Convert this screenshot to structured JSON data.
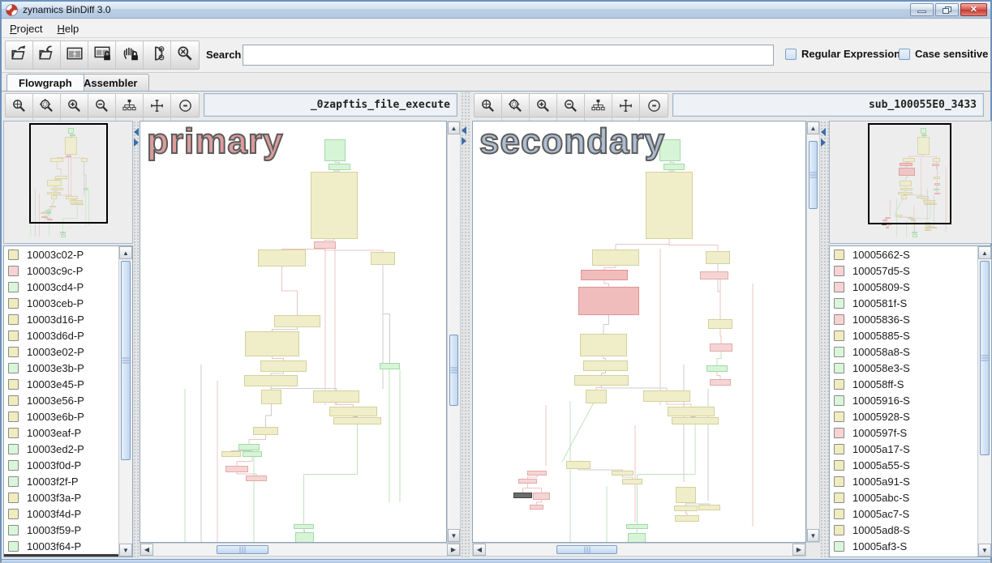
{
  "window": {
    "title": "zynamics BinDiff 3.0"
  },
  "menu": {
    "items": [
      {
        "label": "Project",
        "mnemonic": "P"
      },
      {
        "label": "Help",
        "mnemonic": "H"
      }
    ]
  },
  "toolbar": {
    "buttons": [
      "open-diff-icon",
      "import-diff-icon",
      "dual-window-icon",
      "window-lock-icon",
      "pan-lock-icon",
      "proximity-browsing-icon",
      "clear-search-icon"
    ],
    "search_label": "Search",
    "search_value": "",
    "checkboxes": [
      {
        "label": "Regular Expression",
        "checked": false
      },
      {
        "label": "Case sensitive",
        "checked": false
      }
    ]
  },
  "tabs": [
    {
      "label": "Flowgraph",
      "active": true
    },
    {
      "label": "Assembler",
      "active": false
    }
  ],
  "graph_toolbar_buttons": [
    "zoom-fit-icon",
    "zoom-selection-icon",
    "zoom-in-icon",
    "zoom-out-icon",
    "hierarchy-layout-icon",
    "fit-content-icon",
    "proximity-toggle-icon"
  ],
  "node_colors": {
    "y": {
      "bg": "#f0eec9",
      "bd": "#d4d09c"
    },
    "g": {
      "bg": "#d5f5d6",
      "bd": "#a5d8a8"
    },
    "p": {
      "bg": "#f6d4d4",
      "bd": "#e3aaaa"
    },
    "r": {
      "bg": "#f1bcbc",
      "bd": "#dd9494"
    },
    "d": {
      "bg": "#6b6b6b",
      "bd": "#454545"
    }
  },
  "edge_colors": {
    "gray": "#cccccc",
    "pink": "#ecc4c4",
    "green": "#bfe3bf"
  },
  "swatch_colors": {
    "y": "#f0ecbe",
    "g": "#d9f6da",
    "p": "#f8d3d3"
  },
  "primary_pane": {
    "title": "_0zapftis_file_execute",
    "watermark": "primary",
    "functions": [
      [
        "10003c02-P",
        "y"
      ],
      [
        "10003c9c-P",
        "p"
      ],
      [
        "10003cd4-P",
        "g"
      ],
      [
        "10003ceb-P",
        "y"
      ],
      [
        "10003d16-P",
        "y"
      ],
      [
        "10003d6d-P",
        "y"
      ],
      [
        "10003e02-P",
        "y"
      ],
      [
        "10003e3b-P",
        "g"
      ],
      [
        "10003e45-P",
        "y"
      ],
      [
        "10003e56-P",
        "y"
      ],
      [
        "10003e6b-P",
        "y"
      ],
      [
        "10003eaf-P",
        "y"
      ],
      [
        "10003ed2-P",
        "g"
      ],
      [
        "10003f0d-P",
        "g"
      ],
      [
        "10003f2f-P",
        "g"
      ],
      [
        "10003f3a-P",
        "y"
      ],
      [
        "10003f4d-P",
        "y"
      ],
      [
        "10003f59-P",
        "g"
      ],
      [
        "10003f64-P",
        "g"
      ],
      [
        "",
        "sel"
      ]
    ],
    "graph": {
      "nodes": [
        [
          227,
          22,
          26,
          27,
          "g"
        ],
        [
          232,
          52,
          27,
          8,
          "g"
        ],
        [
          210,
          62,
          58,
          83,
          "y"
        ],
        [
          214,
          148,
          27,
          9,
          "p"
        ],
        [
          145,
          158,
          59,
          21,
          "y"
        ],
        [
          284,
          161,
          30,
          16,
          "y"
        ],
        [
          165,
          239,
          57,
          15,
          "y"
        ],
        [
          129,
          259,
          67,
          31,
          "y"
        ],
        [
          148,
          295,
          57,
          14,
          "y"
        ],
        [
          128,
          313,
          66,
          14,
          "y"
        ],
        [
          149,
          331,
          25,
          18,
          "y"
        ],
        [
          213,
          332,
          57,
          15,
          "y"
        ],
        [
          295,
          298,
          25,
          8,
          "g"
        ],
        [
          233,
          352,
          59,
          12,
          "y"
        ],
        [
          238,
          365,
          59,
          9,
          "y"
        ],
        [
          139,
          377,
          31,
          10,
          "y"
        ],
        [
          121,
          398,
          26,
          8,
          "g"
        ],
        [
          100,
          407,
          24,
          7,
          "y"
        ],
        [
          126,
          407,
          24,
          7,
          "g"
        ],
        [
          189,
          497,
          25,
          6,
          "g"
        ],
        [
          191,
          507,
          23,
          15,
          "g"
        ],
        [
          105,
          425,
          28,
          8,
          "p"
        ],
        [
          130,
          437,
          26,
          7,
          "p"
        ]
      ],
      "edges": [
        [
          0,
          1,
          "gray"
        ],
        [
          1,
          2,
          "gray"
        ],
        [
          2,
          3,
          "pink"
        ],
        [
          3,
          4,
          "pink"
        ],
        [
          3,
          5,
          "pink"
        ],
        [
          4,
          6,
          "pink"
        ],
        [
          6,
          7,
          "gray"
        ],
        [
          7,
          8,
          "pink"
        ],
        [
          8,
          9,
          "gray"
        ],
        [
          9,
          10,
          "pink"
        ],
        [
          9,
          11,
          "gray"
        ],
        [
          10,
          15,
          "gray"
        ],
        [
          15,
          16,
          "pink"
        ],
        [
          16,
          18,
          "green"
        ],
        [
          16,
          17,
          "gray"
        ],
        [
          11,
          13,
          "pink"
        ],
        [
          13,
          14,
          "gray"
        ],
        [
          14,
          19,
          "green"
        ],
        [
          19,
          20,
          "green"
        ],
        [
          5,
          12,
          "gray"
        ],
        [
          21,
          22,
          "pink"
        ],
        [
          18,
          21,
          "pink"
        ]
      ],
      "lines": [
        [
          228,
          157,
          228,
          350,
          "pink"
        ],
        [
          240,
          157,
          240,
          350,
          "pink"
        ],
        [
          299,
          177,
          299,
          330,
          "gray"
        ],
        [
          307,
          306,
          307,
          470,
          "green"
        ],
        [
          320,
          306,
          320,
          470,
          "green"
        ],
        [
          75,
          300,
          75,
          519,
          "gray"
        ],
        [
          95,
          320,
          95,
          519,
          "pink"
        ],
        [
          55,
          330,
          55,
          519,
          "green"
        ],
        [
          140,
          414,
          140,
          519,
          "green"
        ],
        [
          202,
          522,
          202,
          497,
          "gray"
        ]
      ]
    }
  },
  "secondary_pane": {
    "title": "sub_100055E0_3433",
    "watermark": "secondary",
    "functions": [
      [
        "10005662-S",
        "y"
      ],
      [
        "100057d5-S",
        "p"
      ],
      [
        "10005809-S",
        "p"
      ],
      [
        "1000581f-S",
        "g"
      ],
      [
        "10005836-S",
        "p"
      ],
      [
        "10005885-S",
        "y"
      ],
      [
        "100058a8-S",
        "g"
      ],
      [
        "100058e3-S",
        "g"
      ],
      [
        "100058ff-S",
        "y"
      ],
      [
        "10005916-S",
        "g"
      ],
      [
        "10005928-S",
        "y"
      ],
      [
        "1000597f-S",
        "p"
      ],
      [
        "10005a17-S",
        "y"
      ],
      [
        "10005a55-S",
        "y"
      ],
      [
        "10005a91-S",
        "y"
      ],
      [
        "10005abc-S",
        "y"
      ],
      [
        "10005ac7-S",
        "y"
      ],
      [
        "10005ad8-S",
        "y"
      ],
      [
        "10005af3-S",
        "g"
      ],
      [
        "",
        "y"
      ]
    ],
    "graph": {
      "nodes": [
        [
          230,
          22,
          26,
          27,
          "g"
        ],
        [
          235,
          52,
          26,
          8,
          "g"
        ],
        [
          213,
          62,
          58,
          83,
          "y"
        ],
        [
          147,
          158,
          58,
          20,
          "y"
        ],
        [
          287,
          160,
          30,
          16,
          "y"
        ],
        [
          133,
          183,
          58,
          13,
          "r"
        ],
        [
          130,
          204,
          75,
          35,
          "r"
        ],
        [
          280,
          185,
          35,
          10,
          "p"
        ],
        [
          132,
          262,
          58,
          28,
          "y"
        ],
        [
          136,
          295,
          55,
          13,
          "y"
        ],
        [
          125,
          313,
          67,
          13,
          "y"
        ],
        [
          139,
          331,
          26,
          17,
          "y"
        ],
        [
          210,
          332,
          58,
          14,
          "y"
        ],
        [
          290,
          244,
          30,
          12,
          "y"
        ],
        [
          292,
          274,
          28,
          10,
          "p"
        ],
        [
          288,
          301,
          26,
          8,
          "g"
        ],
        [
          292,
          318,
          26,
          8,
          "p"
        ],
        [
          240,
          352,
          58,
          12,
          "y"
        ],
        [
          245,
          365,
          58,
          9,
          "y"
        ],
        [
          115,
          419,
          30,
          10,
          "y"
        ],
        [
          67,
          431,
          24,
          6,
          "p"
        ],
        [
          56,
          441,
          23,
          6,
          "p"
        ],
        [
          50,
          458,
          23,
          7,
          "d"
        ],
        [
          74,
          458,
          21,
          9,
          "p"
        ],
        [
          70,
          473,
          17,
          6,
          "p"
        ],
        [
          171,
          431,
          27,
          6,
          "y"
        ],
        [
          184,
          441,
          25,
          7,
          "y"
        ],
        [
          189,
          497,
          27,
          6,
          "g"
        ],
        [
          191,
          508,
          22,
          13,
          "g"
        ],
        [
          250,
          451,
          25,
          20,
          "y"
        ],
        [
          248,
          474,
          29,
          7,
          "y"
        ],
        [
          278,
          473,
          27,
          7,
          "y"
        ],
        [
          249,
          486,
          30,
          8,
          "y"
        ]
      ],
      "edges": [
        [
          0,
          1,
          "gray"
        ],
        [
          1,
          2,
          "gray"
        ],
        [
          2,
          3,
          "pink"
        ],
        [
          2,
          4,
          "pink"
        ],
        [
          3,
          5,
          "pink"
        ],
        [
          5,
          6,
          "pink"
        ],
        [
          6,
          8,
          "gray"
        ],
        [
          8,
          9,
          "pink"
        ],
        [
          9,
          10,
          "gray"
        ],
        [
          10,
          11,
          "pink"
        ],
        [
          10,
          12,
          "gray"
        ],
        [
          4,
          13,
          "gray"
        ],
        [
          13,
          14,
          "pink"
        ],
        [
          14,
          15,
          "green"
        ],
        [
          15,
          16,
          "pink"
        ],
        [
          12,
          17,
          "pink"
        ],
        [
          17,
          18,
          "gray"
        ],
        [
          18,
          27,
          "green"
        ],
        [
          27,
          28,
          "green"
        ],
        [
          19,
          25,
          "gray"
        ],
        [
          20,
          21,
          "pink"
        ],
        [
          21,
          22,
          "pink"
        ],
        [
          21,
          23,
          "pink"
        ],
        [
          23,
          24,
          "pink"
        ],
        [
          25,
          26,
          "gray"
        ],
        [
          29,
          30,
          "gray"
        ],
        [
          29,
          31,
          "gray"
        ],
        [
          30,
          32,
          "pink"
        ]
      ],
      "lines": [
        [
          231,
          157,
          231,
          350,
          "pink"
        ],
        [
          305,
          195,
          305,
          240,
          "pink"
        ],
        [
          345,
          200,
          345,
          500,
          "pink"
        ],
        [
          260,
          300,
          260,
          445,
          "gray"
        ],
        [
          90,
          350,
          90,
          425,
          "pink"
        ],
        [
          150,
          345,
          110,
          420,
          "green"
        ],
        [
          200,
          375,
          200,
          495,
          "pink"
        ],
        [
          290,
          330,
          290,
          468,
          "gray"
        ],
        [
          120,
          345,
          120,
          519,
          "green"
        ],
        [
          165,
          450,
          165,
          519,
          "green"
        ]
      ]
    }
  }
}
